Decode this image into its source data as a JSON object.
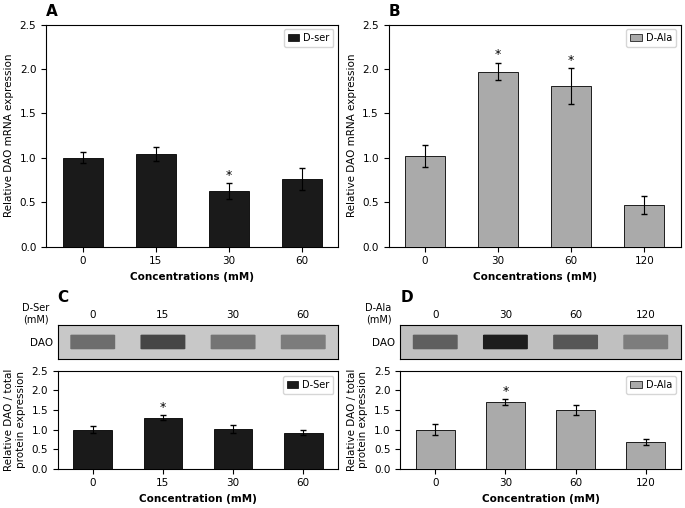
{
  "chart_data": [
    {
      "type": "bar",
      "title": "A",
      "categories": [
        "0",
        "15",
        "30",
        "60"
      ],
      "series": [
        {
          "name": "D-ser",
          "color": "#1a1a1a",
          "values": [
            1.0,
            1.04,
            0.62,
            0.76
          ],
          "errors": [
            0.06,
            0.08,
            0.09,
            0.12
          ]
        }
      ],
      "xlabel": "Concentrations (mM)",
      "ylabel": "Relative DAO mRNA expression",
      "ylim": [
        0,
        2.5
      ],
      "yticks": [
        {
          "value": 0,
          "label": "0.0"
        },
        0.5,
        {
          "value": 1,
          "label": "1.0"
        },
        1.5,
        {
          "value": 2,
          "label": "2.0"
        },
        2.5
      ],
      "legend": "upper right",
      "annotations": [
        {
          "x": "30",
          "text": "*"
        }
      ]
    },
    {
      "type": "bar",
      "title": "B",
      "categories": [
        "0",
        "30",
        "60",
        "120"
      ],
      "series": [
        {
          "name": "D-Ala",
          "color": "#aaaaaa",
          "values": [
            1.02,
            1.97,
            1.81,
            0.47
          ],
          "errors": [
            0.12,
            0.1,
            0.2,
            0.1
          ]
        }
      ],
      "xlabel": "Concentrations (mM)",
      "ylabel": "Relative DAO mRNA expression",
      "ylim": [
        0,
        2.5
      ],
      "yticks": [
        {
          "value": 0,
          "label": "0.0"
        },
        0.5,
        {
          "value": 1,
          "label": "1.0"
        },
        1.5,
        {
          "value": 2,
          "label": "2.0"
        },
        2.5
      ],
      "legend": "upper right",
      "annotations": [
        {
          "x": "30",
          "text": "*"
        },
        {
          "x": "60",
          "text": "*"
        }
      ]
    },
    {
      "type": "blot",
      "title": "C",
      "categories": [
        "0",
        "15",
        "30",
        "60"
      ],
      "y_categories": [
        "DAO"
      ],
      "cells": [
        [
          0.45,
          0.65,
          0.42,
          0.38
        ]
      ],
      "color": "#c8c8c8",
      "annotations": [
        {
          "text": "D-Ser\n(mM)"
        }
      ]
    },
    {
      "type": "bar",
      "categories": [
        "0",
        "15",
        "30",
        "60"
      ],
      "series": [
        {
          "name": "D-Ser",
          "color": "#1a1a1a",
          "values": [
            1.0,
            1.3,
            1.02,
            0.92
          ],
          "errors": [
            0.09,
            0.06,
            0.1,
            0.07
          ]
        }
      ],
      "xlabel": "Concentration (mM)",
      "ylabel": "Relative DAO / total\nprotein expression",
      "ylim": [
        0,
        2.5
      ],
      "yticks": [
        {
          "value": 0,
          "label": "0.0"
        },
        0.5,
        {
          "value": 1,
          "label": "1.0"
        },
        1.5,
        {
          "value": 2,
          "label": "2.0"
        },
        2.5
      ],
      "legend": "upper right",
      "annotations": [
        {
          "x": "15",
          "text": "*"
        }
      ]
    },
    {
      "type": "blot",
      "title": "D",
      "categories": [
        "0",
        "30",
        "60",
        "120"
      ],
      "y_categories": [
        "DAO"
      ],
      "cells": [
        [
          0.5,
          0.85,
          0.55,
          0.35
        ]
      ],
      "color": "#c0c0c0",
      "annotations": [
        {
          "text": "D-Ala\n(mM)"
        }
      ]
    },
    {
      "type": "bar",
      "categories": [
        "0",
        "30",
        "60",
        "120"
      ],
      "series": [
        {
          "name": "D-Ala",
          "color": "#aaaaaa",
          "values": [
            1.0,
            1.7,
            1.5,
            0.68
          ],
          "errors": [
            0.15,
            0.08,
            0.13,
            0.07
          ]
        }
      ],
      "xlabel": "Concentration (mM)",
      "ylabel": "Relative DAO / total\nprotein expression",
      "ylim": [
        0,
        2.5
      ],
      "yticks": [
        {
          "value": 0,
          "label": "0.0"
        },
        0.5,
        {
          "value": 1,
          "label": "1.0"
        },
        1.5,
        {
          "value": 2,
          "label": "2.0"
        },
        2.5
      ],
      "legend": "upper right",
      "annotations": [
        {
          "x": "30",
          "text": "*"
        }
      ]
    }
  ]
}
